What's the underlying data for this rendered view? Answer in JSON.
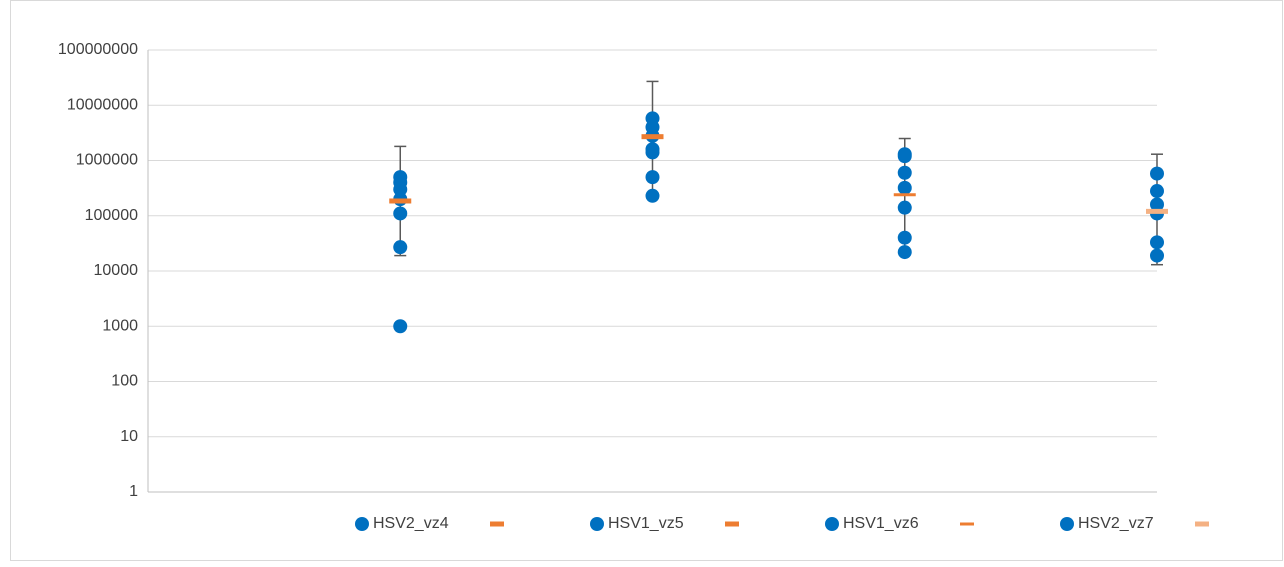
{
  "chart_data": {
    "type": "scatter",
    "log_y": true,
    "grid": true,
    "legend": "bottom",
    "xlim": [
      0,
      4
    ],
    "ylim": [
      1,
      100000000
    ],
    "yticks": [
      1,
      10,
      100,
      1000,
      10000,
      100000,
      1000000,
      10000000,
      100000000
    ],
    "series": [
      {
        "name": "HSV2_vz4",
        "color": "#0070c0",
        "marker": "circle",
        "x": [
          1,
          1,
          1,
          1,
          1,
          1,
          1
        ],
        "values": [
          1000,
          27000,
          110000,
          200000,
          300000,
          400000,
          500000
        ]
      },
      {
        "color": "#ed7d31",
        "marker": "dash",
        "x": [
          1
        ],
        "values": [
          185000
        ],
        "error_low": [
          19000
        ],
        "error_high": [
          1800000
        ]
      },
      {
        "name": "HSV1_vz5",
        "color": "#0070c0",
        "marker": "circle",
        "x": [
          2,
          2,
          2,
          2,
          2,
          2,
          2
        ],
        "values": [
          230000,
          500000,
          1400000,
          1600000,
          2800000,
          4000000,
          5800000
        ]
      },
      {
        "color": "#ed7d31",
        "marker": "dash",
        "x": [
          2
        ],
        "values": [
          2700000
        ],
        "error_low": [
          230000
        ],
        "error_high": [
          27000000
        ]
      },
      {
        "name": "HSV1_vz6",
        "color": "#0070c0",
        "marker": "circle",
        "x": [
          3,
          3,
          3,
          3,
          3,
          3,
          3
        ],
        "values": [
          22000,
          40000,
          140000,
          320000,
          600000,
          1200000,
          1300000
        ]
      },
      {
        "color": "#ed7d31",
        "marker": "thin-dash",
        "x": [
          3
        ],
        "values": [
          240000
        ],
        "error_low": [
          22000
        ],
        "error_high": [
          2500000
        ]
      },
      {
        "name": "HSV2_vz7",
        "color": "#0070c0",
        "marker": "circle",
        "x": [
          4,
          4,
          4,
          4,
          4,
          4
        ],
        "values": [
          19000,
          33000,
          110000,
          160000,
          280000,
          580000
        ]
      },
      {
        "color": "#f4b183",
        "marker": "dash",
        "x": [
          4
        ],
        "values": [
          120000
        ],
        "error_low": [
          13000
        ],
        "error_high": [
          1300000
        ]
      }
    ]
  }
}
